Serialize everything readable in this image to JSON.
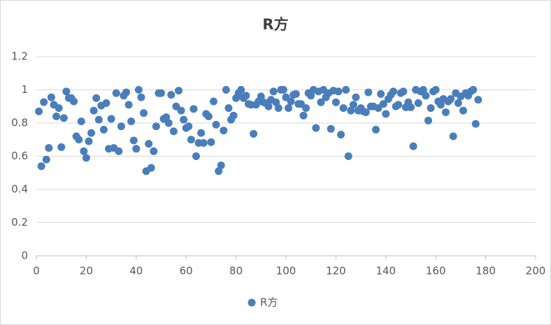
{
  "chart_data": {
    "type": "scatter",
    "title": "R方",
    "xlim": [
      0,
      200
    ],
    "xticks": [
      0,
      20,
      40,
      60,
      80,
      100,
      120,
      140,
      160,
      180,
      200
    ],
    "ylim": [
      0,
      1.2
    ],
    "yticks": [
      0,
      0.2,
      0.4,
      0.6,
      0.8,
      1,
      1.2
    ],
    "grid": true,
    "legend": "bottom",
    "series": [
      {
        "name": "R方",
        "color": "#4a7ebb",
        "x": [
          1,
          2,
          3,
          4,
          5,
          6,
          7,
          8,
          9,
          10,
          11,
          12,
          13,
          14,
          15,
          16,
          17,
          18,
          19,
          20,
          21,
          22,
          23,
          24,
          25,
          26,
          27,
          28,
          29,
          30,
          31,
          32,
          33,
          34,
          35,
          36,
          37,
          38,
          39,
          40,
          41,
          42,
          43,
          44,
          45,
          46,
          47,
          48,
          49,
          50,
          51,
          52,
          53,
          54,
          55,
          56,
          57,
          58,
          59,
          60,
          61,
          62,
          63,
          64,
          65,
          66,
          67,
          68,
          69,
          70,
          71,
          72,
          73,
          74,
          75,
          76,
          77,
          78,
          79,
          80,
          81,
          82,
          83,
          84,
          85,
          86,
          87,
          88,
          89,
          90,
          91,
          92,
          93,
          94,
          95,
          96,
          97,
          98,
          99,
          100,
          101,
          102,
          103,
          104,
          105,
          106,
          107,
          108,
          109,
          110,
          111,
          112,
          113,
          114,
          115,
          116,
          117,
          118,
          119,
          120,
          121,
          122,
          123,
          124,
          125,
          126,
          127,
          128,
          129,
          130,
          131,
          132,
          133,
          134,
          135,
          136,
          137,
          138,
          139,
          140,
          141,
          142,
          143,
          144,
          145,
          146,
          147,
          148,
          149,
          150,
          151,
          152,
          153,
          154,
          155,
          156,
          157,
          158,
          159,
          160,
          161,
          162,
          163,
          164,
          165,
          166,
          167,
          168,
          169,
          170,
          171,
          172,
          173,
          174,
          175,
          176,
          177
        ],
        "values": [
          0.87,
          0.54,
          0.926,
          0.58,
          0.65,
          0.955,
          0.91,
          0.84,
          0.89,
          0.655,
          0.83,
          0.99,
          0.95,
          0.95,
          0.93,
          0.72,
          0.7,
          0.81,
          0.63,
          0.59,
          0.69,
          0.74,
          0.875,
          0.95,
          0.82,
          0.905,
          0.76,
          0.92,
          0.645,
          0.825,
          0.65,
          0.98,
          0.63,
          0.78,
          0.965,
          0.985,
          0.91,
          0.81,
          0.695,
          0.645,
          1.0,
          0.955,
          0.86,
          0.51,
          0.675,
          0.53,
          0.63,
          0.78,
          0.98,
          0.98,
          0.825,
          0.835,
          0.8,
          0.97,
          0.75,
          0.9,
          0.995,
          0.875,
          0.82,
          0.77,
          0.78,
          0.7,
          0.885,
          0.6,
          0.68,
          0.74,
          0.68,
          0.855,
          0.84,
          0.685,
          0.93,
          0.79,
          0.51,
          0.545,
          0.755,
          1.0,
          0.89,
          0.82,
          0.845,
          0.95,
          0.98,
          1.0,
          0.95,
          0.965,
          0.915,
          0.91,
          0.735,
          0.91,
          0.93,
          0.96,
          0.925,
          0.92,
          0.9,
          0.94,
          0.99,
          0.925,
          0.89,
          1.0,
          1.0,
          0.955,
          0.89,
          0.93,
          0.97,
          0.975,
          0.915,
          0.915,
          0.845,
          0.89,
          0.98,
          0.965,
          1.0,
          0.77,
          0.99,
          0.925,
          1.0,
          0.955,
          0.98,
          0.765,
          0.995,
          0.925,
          0.99,
          0.73,
          0.89,
          1.0,
          0.6,
          0.875,
          0.91,
          0.955,
          0.875,
          0.89,
          0.87,
          0.865,
          0.985,
          0.9,
          0.9,
          0.76,
          0.89,
          0.975,
          0.915,
          0.855,
          0.945,
          0.97,
          0.99,
          0.9,
          0.91,
          0.98,
          0.99,
          0.895,
          0.925,
          0.895,
          0.66,
          1.0,
          0.92,
          0.99,
          1.0,
          0.965,
          0.815,
          0.89,
          0.99,
          1.0,
          0.93,
          0.91,
          0.945,
          0.865,
          0.93,
          0.945,
          0.72,
          0.98,
          0.92,
          0.96,
          0.875,
          0.98,
          0.965,
          0.99,
          1.0,
          0.795,
          0.94
        ]
      }
    ]
  }
}
